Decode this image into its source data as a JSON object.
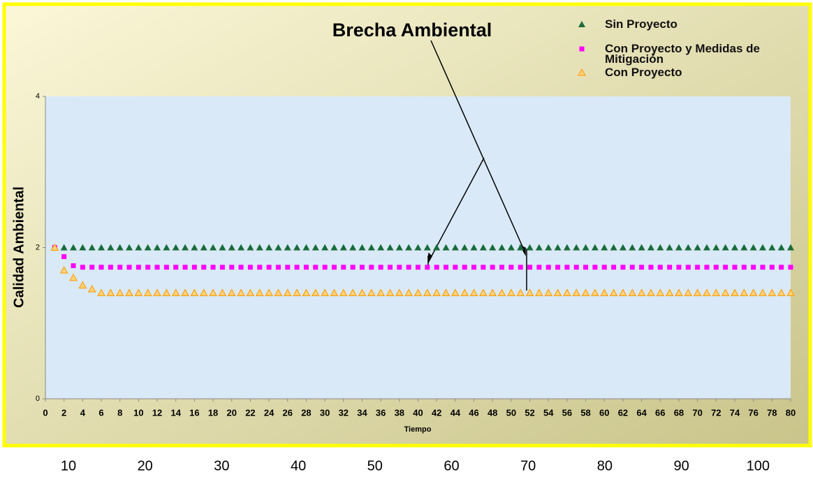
{
  "chart_data": {
    "type": "scatter",
    "annotation": "Brecha Ambiental",
    "xlabel": "Tiempo",
    "ylabel": "Calidad Ambiental",
    "x": [
      1,
      2,
      3,
      4,
      5,
      6,
      7,
      8,
      9,
      10,
      11,
      12,
      13,
      14,
      15,
      16,
      17,
      18,
      19,
      20,
      21,
      22,
      23,
      24,
      25,
      26,
      27,
      28,
      29,
      30,
      31,
      32,
      33,
      34,
      35,
      36,
      37,
      38,
      39,
      40,
      41,
      42,
      43,
      44,
      45,
      46,
      47,
      48,
      49,
      50,
      51,
      52,
      53,
      54,
      55,
      56,
      57,
      58,
      59,
      60,
      61,
      62,
      63,
      64,
      65,
      66,
      67,
      68,
      69,
      70,
      71,
      72,
      73,
      74,
      75,
      76,
      77,
      78,
      79,
      80
    ],
    "series": [
      {
        "name": "Sin Proyecto",
        "color": "#1a6b3a",
        "marker": "triangle",
        "values": [
          2,
          2,
          2,
          2,
          2,
          2,
          2,
          2,
          2,
          2,
          2,
          2,
          2,
          2,
          2,
          2,
          2,
          2,
          2,
          2,
          2,
          2,
          2,
          2,
          2,
          2,
          2,
          2,
          2,
          2,
          2,
          2,
          2,
          2,
          2,
          2,
          2,
          2,
          2,
          2,
          2,
          2,
          2,
          2,
          2,
          2,
          2,
          2,
          2,
          2,
          2,
          2,
          2,
          2,
          2,
          2,
          2,
          2,
          2,
          2,
          2,
          2,
          2,
          2,
          2,
          2,
          2,
          2,
          2,
          2,
          2,
          2,
          2,
          2,
          2,
          2,
          2,
          2,
          2,
          2
        ]
      },
      {
        "name": "Con Proyecto y Medidas de Mitigación",
        "color": "#ff00ff",
        "marker": "square",
        "values": [
          2,
          1.88,
          1.76,
          1.74,
          1.74,
          1.74,
          1.74,
          1.74,
          1.74,
          1.74,
          1.74,
          1.74,
          1.74,
          1.74,
          1.74,
          1.74,
          1.74,
          1.74,
          1.74,
          1.74,
          1.74,
          1.74,
          1.74,
          1.74,
          1.74,
          1.74,
          1.74,
          1.74,
          1.74,
          1.74,
          1.74,
          1.74,
          1.74,
          1.74,
          1.74,
          1.74,
          1.74,
          1.74,
          1.74,
          1.74,
          1.74,
          1.74,
          1.74,
          1.74,
          1.74,
          1.74,
          1.74,
          1.74,
          1.74,
          1.74,
          1.74,
          1.74,
          1.74,
          1.74,
          1.74,
          1.74,
          1.74,
          1.74,
          1.74,
          1.74,
          1.74,
          1.74,
          1.74,
          1.74,
          1.74,
          1.74,
          1.74,
          1.74,
          1.74,
          1.74,
          1.74,
          1.74,
          1.74,
          1.74,
          1.74,
          1.74,
          1.74,
          1.74,
          1.74,
          1.74
        ]
      },
      {
        "name": "Con Proyecto",
        "color": "#ff9900",
        "marker": "open-triangle",
        "values": [
          2,
          1.7,
          1.6,
          1.5,
          1.45,
          1.4,
          1.4,
          1.4,
          1.4,
          1.4,
          1.4,
          1.4,
          1.4,
          1.4,
          1.4,
          1.4,
          1.4,
          1.4,
          1.4,
          1.4,
          1.4,
          1.4,
          1.4,
          1.4,
          1.4,
          1.4,
          1.4,
          1.4,
          1.4,
          1.4,
          1.4,
          1.4,
          1.4,
          1.4,
          1.4,
          1.4,
          1.4,
          1.4,
          1.4,
          1.4,
          1.4,
          1.4,
          1.4,
          1.4,
          1.4,
          1.4,
          1.4,
          1.4,
          1.4,
          1.4,
          1.4,
          1.4,
          1.4,
          1.4,
          1.4,
          1.4,
          1.4,
          1.4,
          1.4,
          1.4,
          1.4,
          1.4,
          1.4,
          1.4,
          1.4,
          1.4,
          1.4,
          1.4,
          1.4,
          1.4,
          1.4,
          1.4,
          1.4,
          1.4,
          1.4,
          1.4,
          1.4,
          1.4,
          1.4,
          1.4
        ]
      }
    ],
    "xlim": [
      0,
      80
    ],
    "xticks": [
      0,
      2,
      4,
      6,
      8,
      10,
      12,
      14,
      16,
      18,
      20,
      22,
      24,
      26,
      28,
      30,
      32,
      34,
      36,
      38,
      40,
      42,
      44,
      46,
      48,
      50,
      52,
      54,
      56,
      58,
      60,
      62,
      64,
      66,
      68,
      70,
      72,
      74,
      76,
      78,
      80
    ],
    "ylim": [
      0,
      4
    ],
    "yticks": [
      0,
      2,
      4
    ],
    "grid": false,
    "legend": "top-right",
    "bottom_labels": [
      "10",
      "20",
      "30",
      "40",
      "50",
      "60",
      "70",
      "80",
      "90",
      "100"
    ]
  }
}
